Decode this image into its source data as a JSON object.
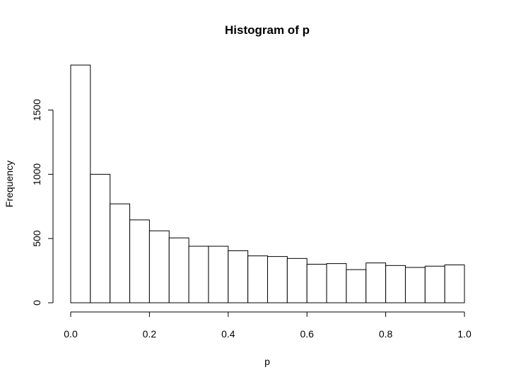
{
  "chart_data": {
    "type": "bar",
    "title": "Histogram of p",
    "xlabel": "p",
    "ylabel": "Frequency",
    "bin_width": 0.05,
    "bin_starts": [
      0.0,
      0.05,
      0.1,
      0.15,
      0.2,
      0.25,
      0.3,
      0.35,
      0.4,
      0.45,
      0.5,
      0.55,
      0.6,
      0.65,
      0.7,
      0.75,
      0.8,
      0.85,
      0.9,
      0.95
    ],
    "values": [
      1850,
      1000,
      770,
      645,
      560,
      505,
      440,
      440,
      405,
      365,
      360,
      345,
      300,
      305,
      258,
      310,
      290,
      275,
      285,
      295
    ],
    "xlim": [
      0,
      1
    ],
    "ylim": [
      0,
      1850
    ],
    "x_ticks": [
      0.0,
      0.2,
      0.4,
      0.6,
      0.8,
      1.0
    ],
    "x_tick_labels": [
      "0.0",
      "0.2",
      "0.4",
      "0.6",
      "0.8",
      "1.0"
    ],
    "y_ticks": [
      0,
      500,
      1000,
      1500
    ],
    "y_tick_labels": [
      "0",
      "500",
      "1000",
      "1500"
    ],
    "grid": false,
    "colors": {
      "bar_fill": "#ffffff",
      "bar_stroke": "#000000"
    }
  }
}
